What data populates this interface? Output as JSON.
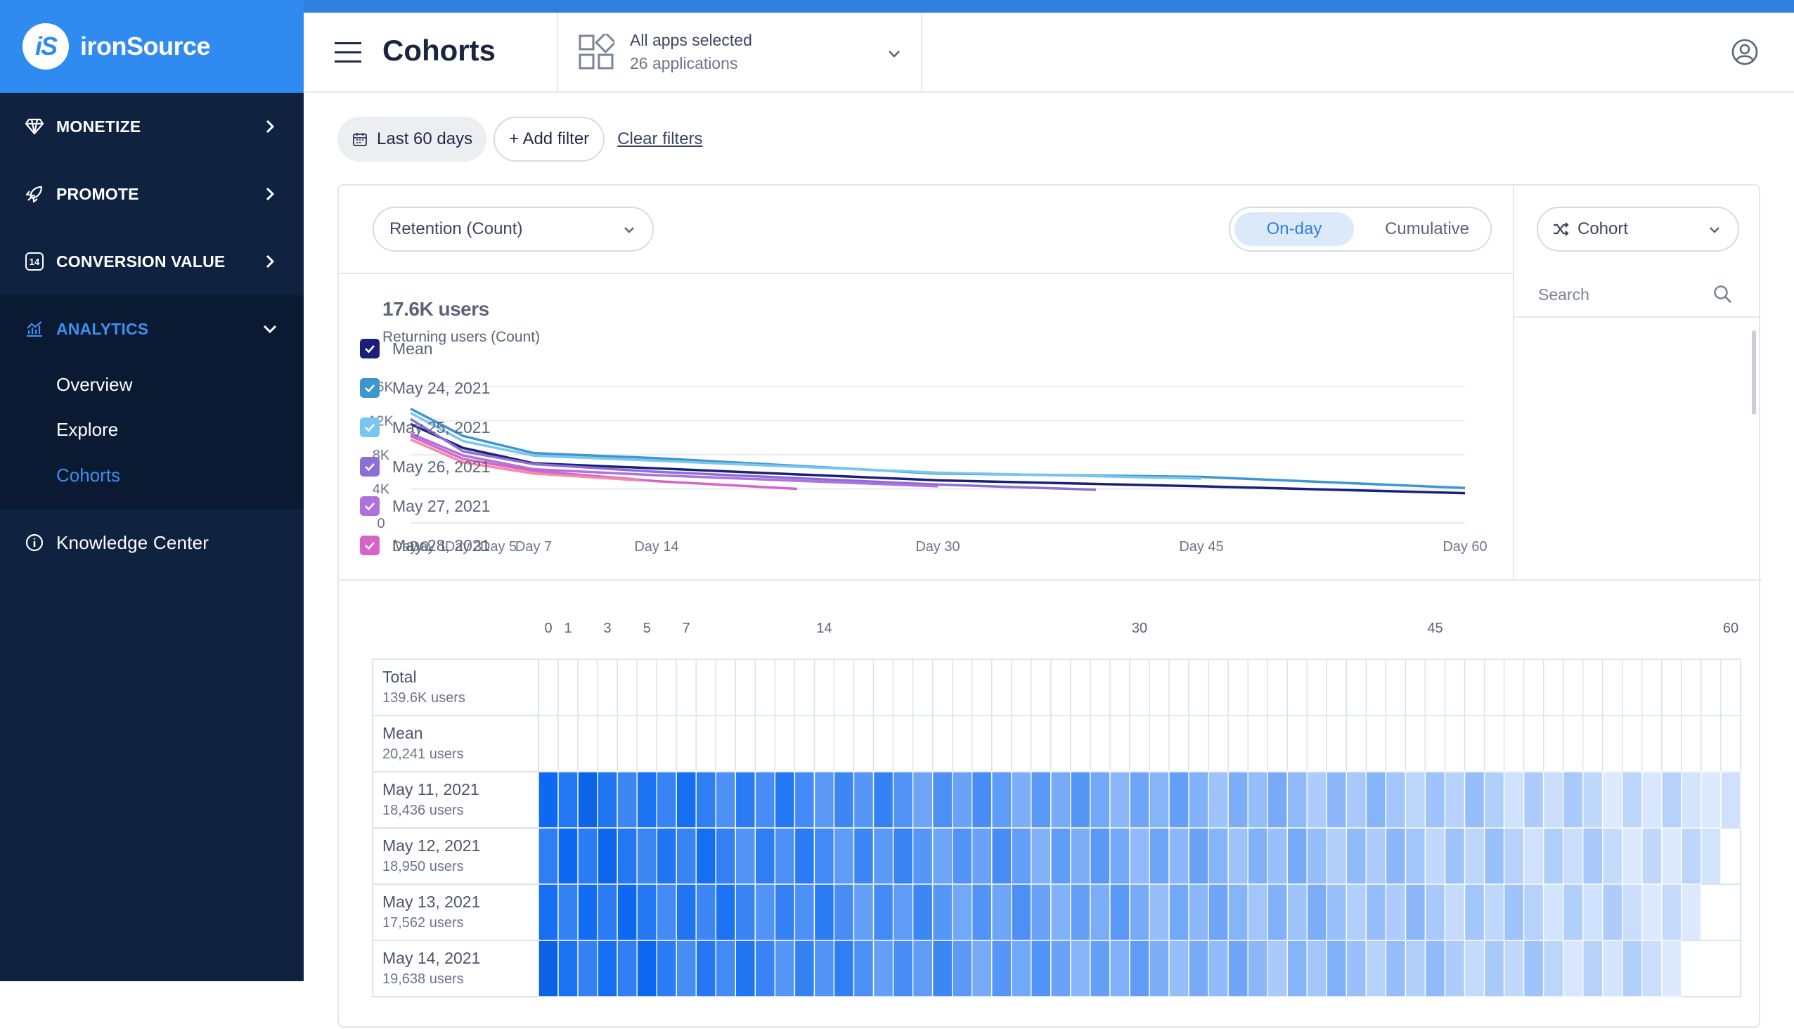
{
  "brand": {
    "name": "ironSource",
    "logo_text": "iS"
  },
  "sidebar": {
    "items": [
      {
        "label": "MONETIZE",
        "icon": "diamond-icon"
      },
      {
        "label": "PROMOTE",
        "icon": "rocket-icon"
      },
      {
        "label": "CONVERSION VALUE",
        "icon": "conversion-value-icon",
        "icon_text": "14"
      },
      {
        "label": "ANALYTICS",
        "icon": "analytics-icon"
      }
    ],
    "analytics_sub": [
      {
        "label": "Overview"
      },
      {
        "label": "Explore"
      },
      {
        "label": "Cohorts"
      }
    ],
    "knowledge": {
      "label": "Knowledge Center",
      "icon": "info-icon"
    }
  },
  "header": {
    "title": "Cohorts",
    "apps_title": "All apps selected",
    "apps_sub": "26 applications"
  },
  "filters": {
    "date_label": "Last 60 days",
    "add_label": "+ Add filter",
    "clear_label": "Clear filters"
  },
  "controls": {
    "metric_select": "Retention (Count)",
    "toggle_on": "On-day",
    "toggle_off": "Cumulative",
    "group_select": "Cohort"
  },
  "summary": {
    "headline": "17.6K users",
    "subtitle": "Returning users (Count)"
  },
  "legend": {
    "search_placeholder": "Search",
    "items": [
      {
        "label": "Mean",
        "color": "#1a1f7a"
      },
      {
        "label": "May 24, 2021",
        "color": "#3d97cf"
      },
      {
        "label": "May 25, 2021",
        "color": "#79c6f2"
      },
      {
        "label": "May 26, 2021",
        "color": "#8c6fd6"
      },
      {
        "label": "May 27, 2021",
        "color": "#b070dd"
      },
      {
        "label": "May 28, 2021",
        "color": "#d863c8"
      }
    ]
  },
  "chart_data": {
    "type": "line",
    "x_labels": [
      "Day 0",
      "Day 1",
      "Day 3",
      "Day 5",
      "Day 7",
      "Day 14",
      "Day 30",
      "Day 45",
      "Day 60"
    ],
    "x_label_days": [
      0,
      1,
      3,
      5,
      7,
      14,
      30,
      45,
      60
    ],
    "y_ticks": [
      "0",
      "4K",
      "8K",
      "12K",
      "16K"
    ],
    "ylim": [
      0,
      16000
    ],
    "xlim": [
      0,
      60
    ],
    "grid": true,
    "series": [
      {
        "name": "May 24, 2021",
        "color": "#3d97cf",
        "points": [
          [
            0,
            13400
          ],
          [
            3,
            10200
          ],
          [
            7,
            8200
          ],
          [
            14,
            7600
          ],
          [
            30,
            5800
          ],
          [
            45,
            5400
          ],
          [
            60,
            4100
          ]
        ]
      },
      {
        "name": "May 25, 2021",
        "color": "#79c6f2",
        "points": [
          [
            0,
            12900
          ],
          [
            3,
            9600
          ],
          [
            7,
            7900
          ],
          [
            14,
            7300
          ],
          [
            30,
            5900
          ],
          [
            45,
            5200
          ]
        ]
      },
      {
        "name": "Mean",
        "color": "#1a1f7a",
        "points": [
          [
            0,
            11600
          ],
          [
            3,
            8800
          ],
          [
            7,
            7000
          ],
          [
            14,
            6400
          ],
          [
            30,
            5000
          ],
          [
            45,
            4300
          ],
          [
            60,
            3500
          ]
        ]
      },
      {
        "name": "May 26, 2021",
        "color": "#8c6fd6",
        "points": [
          [
            0,
            12200
          ],
          [
            3,
            8400
          ],
          [
            7,
            6900
          ],
          [
            14,
            6000
          ],
          [
            30,
            4500
          ],
          [
            39,
            3900
          ]
        ]
      },
      {
        "name": "May 27, 2021",
        "color": "#b070dd",
        "points": [
          [
            0,
            10500
          ],
          [
            3,
            7900
          ],
          [
            7,
            6300
          ],
          [
            14,
            5600
          ],
          [
            30,
            4300
          ]
        ]
      },
      {
        "name": "May 28, 2021",
        "color": "#d863c8",
        "points": [
          [
            0,
            10200
          ],
          [
            3,
            7500
          ],
          [
            7,
            6100
          ],
          [
            14,
            4900
          ],
          [
            22,
            4000
          ]
        ]
      },
      {
        "name": "",
        "color": "#f48aa8",
        "points": [
          [
            0,
            9800
          ],
          [
            3,
            7100
          ],
          [
            7,
            5800
          ],
          [
            13,
            5000
          ]
        ]
      }
    ]
  },
  "heatmap": {
    "axis_labels": [
      "0",
      "1",
      "3",
      "5",
      "7",
      "14",
      "30",
      "45",
      "60"
    ],
    "axis_days": [
      0,
      1,
      3,
      5,
      7,
      14,
      30,
      45,
      60
    ],
    "rows": [
      {
        "label": "Total",
        "sub": "139.6K users",
        "shaded": false,
        "len": 61
      },
      {
        "label": "Mean",
        "sub": "20,241 users",
        "shaded": false,
        "len": 61
      },
      {
        "label": "May 11, 2021",
        "sub": "18,436 users",
        "shaded": true,
        "len": 61
      },
      {
        "label": "May 12, 2021",
        "sub": "18,950 users",
        "shaded": true,
        "len": 60
      },
      {
        "label": "May 13, 2021",
        "sub": "17,562 users",
        "shaded": true,
        "len": 59
      },
      {
        "label": "May 14, 2021",
        "sub": "19,638 users",
        "shaded": true,
        "len": 58
      }
    ]
  }
}
